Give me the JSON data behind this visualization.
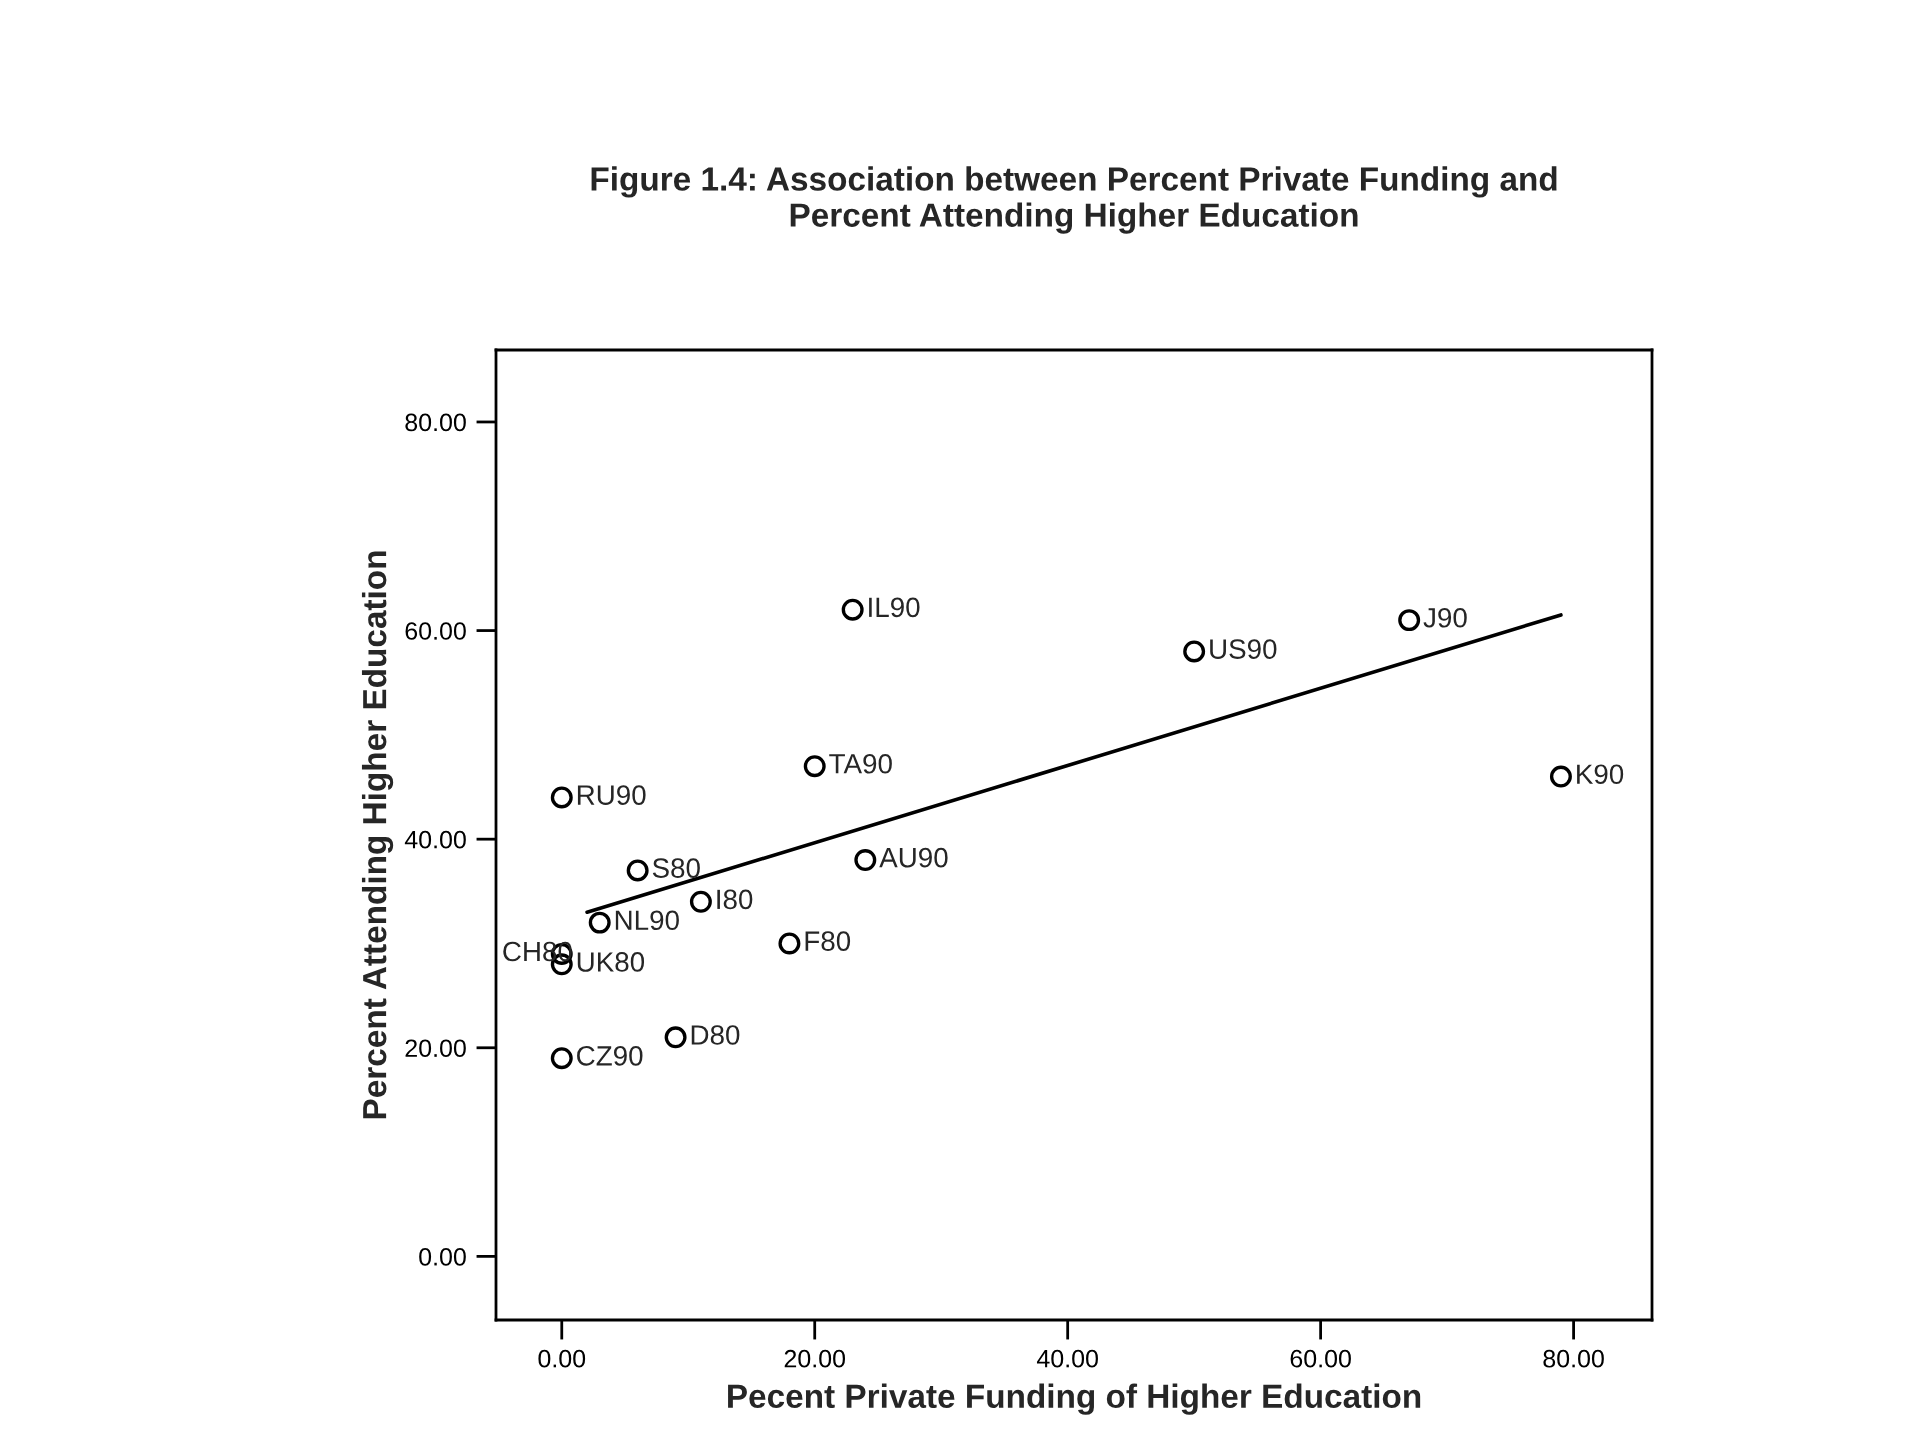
{
  "chart_data": {
    "type": "scatter",
    "title": "Figure 1.4: Association between Percent Private Funding and\nPercent Attending Higher Education",
    "xlabel": "Pecent Private Funding of Higher Education",
    "ylabel": "Percent Attending Higher Education",
    "series": [
      {
        "marker": "circle",
        "color": "#000000",
        "x": [
          23,
          50,
          67,
          79,
          20,
          0,
          6,
          24,
          11,
          3,
          0,
          0,
          18,
          9,
          0
        ],
        "values": [
          62,
          58,
          61,
          46,
          47,
          44,
          37,
          38,
          34,
          32,
          29,
          28,
          30,
          21,
          19
        ]
      },
      {
        "type": "line",
        "color": "#000000",
        "x": [
          2,
          79
        ],
        "values": [
          33,
          61.5
        ]
      }
    ],
    "annotations": [
      {
        "text": "IL90",
        "x": 23,
        "y": 62
      },
      {
        "text": "US90",
        "x": 50,
        "y": 58
      },
      {
        "text": "J90",
        "x": 67,
        "y": 61
      },
      {
        "text": "K90",
        "x": 79,
        "y": 46
      },
      {
        "text": "TA90",
        "x": 20,
        "y": 47
      },
      {
        "text": "RU90",
        "x": 0,
        "y": 44
      },
      {
        "text": "S80",
        "x": 6,
        "y": 37
      },
      {
        "text": "AU90",
        "x": 24,
        "y": 38
      },
      {
        "text": "I80",
        "x": 11,
        "y": 34
      },
      {
        "text": "NL90",
        "x": 3,
        "y": 32
      },
      {
        "text": "CH80",
        "x": 0,
        "y": 29
      },
      {
        "text": "UK80",
        "x": 0,
        "y": 28
      },
      {
        "text": "F80",
        "x": 18,
        "y": 30
      },
      {
        "text": "D80",
        "x": 9,
        "y": 21
      },
      {
        "text": "CZ90",
        "x": 0,
        "y": 19
      }
    ],
    "xlim": [
      -5.2,
      86.2
    ],
    "ylim": [
      -6.1,
      86.9
    ],
    "xticks": [
      {
        "value": 0,
        "label": "0.00"
      },
      {
        "value": 20,
        "label": "20.00"
      },
      {
        "value": 40,
        "label": "40.00"
      },
      {
        "value": 60,
        "label": "60.00"
      },
      {
        "value": 80,
        "label": "80.00"
      }
    ],
    "yticks": [
      {
        "value": 0,
        "label": "0.00"
      },
      {
        "value": 20,
        "label": "20.00"
      },
      {
        "value": 40,
        "label": "40.00"
      },
      {
        "value": 60,
        "label": "60.00"
      },
      {
        "value": 80,
        "label": "80.00"
      }
    ],
    "grid": false,
    "legend": false
  }
}
